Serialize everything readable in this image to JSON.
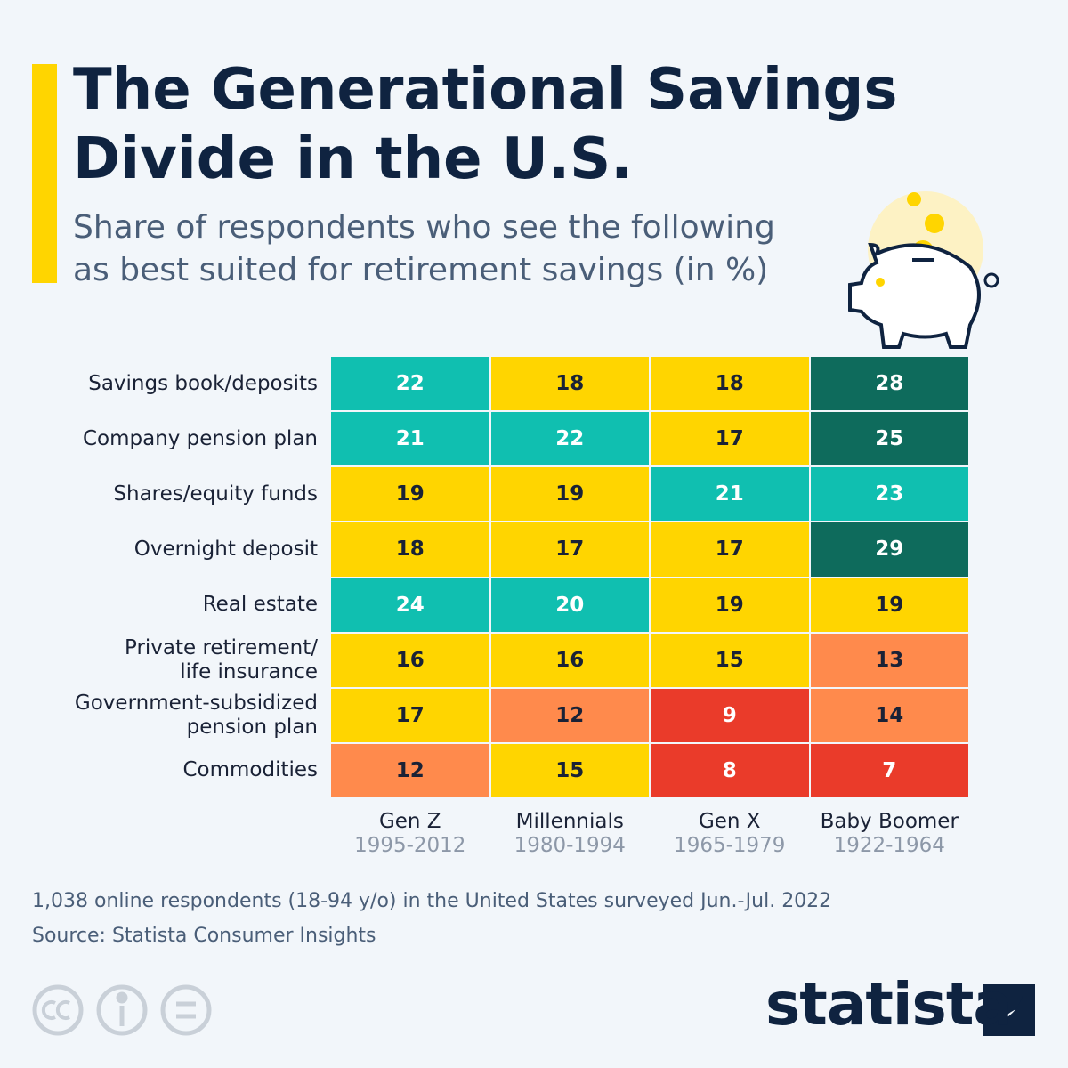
{
  "chart_data": {
    "type": "heatmap",
    "title": "The Generational Savings\nDivide in the U.S.",
    "subtitle": "Share of respondents who see the following\nas best suited for retirement savings (in %)",
    "rows": [
      "Savings book/deposits",
      "Company pension plan",
      "Shares/equity funds",
      "Overnight deposit",
      "Real estate",
      "Private retirement/\nlife insurance",
      "Government-subsidized\npension plan",
      "Commodities"
    ],
    "columns": [
      {
        "name": "Gen Z",
        "years": "1995-2012"
      },
      {
        "name": "Millennials",
        "years": "1980-1994"
      },
      {
        "name": "Gen X",
        "years": "1965-1979"
      },
      {
        "name": "Baby Boomer",
        "years": "1922-1964"
      }
    ],
    "values": [
      [
        22,
        18,
        18,
        28
      ],
      [
        21,
        22,
        17,
        25
      ],
      [
        19,
        19,
        21,
        23
      ],
      [
        18,
        17,
        17,
        29
      ],
      [
        24,
        20,
        19,
        19
      ],
      [
        16,
        16,
        15,
        13
      ],
      [
        17,
        12,
        9,
        14
      ],
      [
        12,
        15,
        8,
        7
      ]
    ],
    "color_scale": [
      {
        "min": 25,
        "color": "#0e6b5c",
        "text_color": "#ffffff"
      },
      {
        "min": 20,
        "color": "#10bfb0",
        "text_color": "#ffffff"
      },
      {
        "min": 15,
        "color": "#ffd500",
        "text_color": "#1a2236"
      },
      {
        "min": 10,
        "color": "#ff8a4c",
        "text_color": "#1a2236"
      },
      {
        "min": 0,
        "color": "#ea3b2a",
        "text_color": "#ffffff"
      }
    ],
    "note": "1,038 online respondents (18-94 y/o) in the United States surveyed Jun.-Jul. 2022",
    "source": "Source: Statista Consumer Insights",
    "brand": "statista"
  }
}
